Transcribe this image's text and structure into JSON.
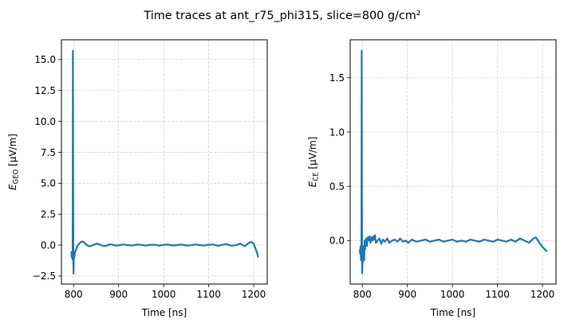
{
  "figure": {
    "title": "Time traces at ant_r75_phi315, slice=800 g/cm²"
  },
  "chart_data": [
    {
      "type": "line",
      "panel": "left",
      "title": "",
      "xlabel": "Time [ns]",
      "ylabel_main": "E",
      "ylabel_sub": "GEO",
      "ylabel_unit": " [µV/m]",
      "xlim": [
        773,
        1230
      ],
      "ylim": [
        -3.15,
        16.6
      ],
      "xticks": [
        800,
        900,
        1000,
        1100,
        1200
      ],
      "xtick_labels": [
        "800",
        "900",
        "1000",
        "1100",
        "1200"
      ],
      "yticks": [
        -2.5,
        0.0,
        2.5,
        5.0,
        7.5,
        10.0,
        12.5,
        15.0
      ],
      "ytick_labels": [
        "−2.5",
        "0.0",
        "2.5",
        "5.0",
        "7.5",
        "10.0",
        "12.5",
        "15.0"
      ],
      "grid": true,
      "legend": null,
      "color": "#1f77b4",
      "series": [
        {
          "name": "E_GEO",
          "x": [
            795,
            796,
            797,
            798,
            798.5,
            799,
            799.5,
            800,
            800.5,
            801,
            802,
            803,
            805,
            808,
            812,
            816,
            820,
            824,
            828,
            834,
            840,
            846,
            852,
            858,
            864,
            870,
            876,
            882,
            888,
            894,
            900,
            910,
            920,
            930,
            940,
            950,
            960,
            970,
            980,
            990,
            1000,
            1010,
            1020,
            1030,
            1040,
            1050,
            1060,
            1070,
            1080,
            1090,
            1100,
            1110,
            1120,
            1130,
            1140,
            1150,
            1160,
            1170,
            1180,
            1190,
            1195,
            1200,
            1203,
            1206,
            1208,
            1210
          ],
          "y": [
            -0.5,
            -1.0,
            -0.7,
            -1.2,
            15.7,
            5.0,
            -1.5,
            -2.3,
            -0.8,
            -1.1,
            -0.9,
            -0.6,
            -0.4,
            -0.1,
            0.1,
            0.25,
            0.3,
            0.2,
            0.05,
            -0.1,
            -0.05,
            0.05,
            0.12,
            0.05,
            -0.05,
            -0.08,
            0.0,
            0.06,
            0.02,
            -0.05,
            -0.02,
            0.05,
            0.0,
            -0.04,
            0.04,
            0.02,
            -0.04,
            0.03,
            0.03,
            -0.04,
            0.02,
            0.04,
            -0.03,
            0.0,
            0.05,
            -0.03,
            -0.02,
            0.05,
            0.0,
            -0.04,
            0.03,
            0.05,
            -0.06,
            0.02,
            0.08,
            -0.05,
            -0.02,
            0.12,
            -0.1,
            0.2,
            0.25,
            0.1,
            -0.2,
            -0.5,
            -0.7,
            -1.0
          ]
        }
      ]
    },
    {
      "type": "line",
      "panel": "right",
      "title": "",
      "xlabel": "Time [ns]",
      "ylabel_main": "E",
      "ylabel_sub": "CE",
      "ylabel_unit": " [µV/m]",
      "xlim": [
        773,
        1230
      ],
      "ylim": [
        -0.4,
        1.85
      ],
      "xticks": [
        800,
        900,
        1000,
        1100,
        1200
      ],
      "xtick_labels": [
        "800",
        "900",
        "1000",
        "1100",
        "1200"
      ],
      "yticks": [
        0.0,
        0.5,
        1.0,
        1.5
      ],
      "ytick_labels": [
        "0.0",
        "0.5",
        "1.0",
        "1.5"
      ],
      "grid": true,
      "legend": null,
      "color": "#1f77b4",
      "series": [
        {
          "name": "E_CE",
          "x": [
            794,
            795,
            796,
            797,
            798,
            798.5,
            799,
            799.5,
            800,
            800.5,
            801,
            802,
            803,
            804,
            805,
            806,
            808,
            810,
            812,
            814,
            816,
            818,
            820,
            822,
            824,
            826,
            828,
            830,
            834,
            838,
            842,
            846,
            850,
            855,
            860,
            866,
            872,
            878,
            884,
            890,
            896,
            902,
            910,
            920,
            930,
            940,
            950,
            960,
            970,
            980,
            990,
            1000,
            1010,
            1020,
            1030,
            1040,
            1050,
            1060,
            1070,
            1080,
            1090,
            1100,
            1110,
            1120,
            1130,
            1140,
            1150,
            1160,
            1170,
            1180,
            1185,
            1190,
            1195,
            1200,
            1205,
            1210
          ],
          "y": [
            -0.08,
            -0.12,
            -0.05,
            -0.18,
            -0.1,
            1.75,
            0.4,
            -0.3,
            -0.25,
            -0.15,
            -0.2,
            -0.1,
            -0.05,
            -0.18,
            0.0,
            -0.08,
            0.02,
            -0.05,
            0.03,
            0.0,
            0.04,
            -0.02,
            0.03,
            0.0,
            0.04,
            0.01,
            0.05,
            -0.02,
            0.0,
            0.02,
            -0.03,
            0.01,
            -0.01,
            0.02,
            -0.02,
            0.0,
            0.01,
            -0.01,
            0.02,
            -0.01,
            0.0,
            -0.02,
            0.01,
            -0.01,
            0.0,
            0.01,
            -0.01,
            0.0,
            0.01,
            -0.01,
            0.0,
            0.01,
            -0.01,
            0.0,
            -0.01,
            0.01,
            0.0,
            -0.01,
            0.01,
            0.0,
            -0.01,
            0.01,
            0.0,
            -0.01,
            0.01,
            -0.01,
            0.02,
            0.0,
            -0.02,
            0.02,
            0.03,
            0.0,
            -0.03,
            -0.06,
            -0.08,
            -0.1
          ]
        }
      ]
    }
  ]
}
